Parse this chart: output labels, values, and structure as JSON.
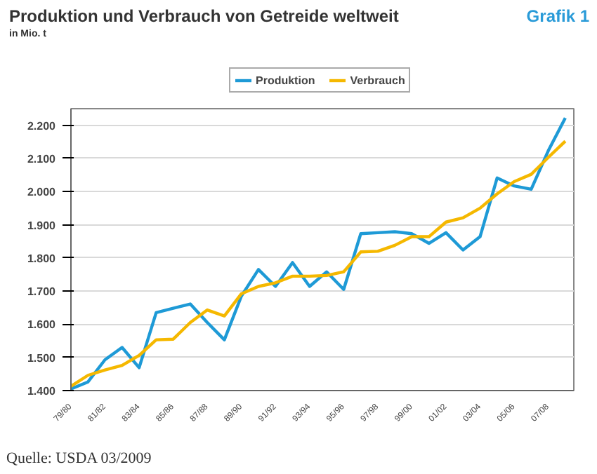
{
  "chart_data": {
    "type": "line",
    "title": "Produktion und Verbrauch von Getreide weltweit",
    "subtitle": "in Mio. t",
    "annotations": [
      "Grafik 1",
      "Quelle: USDA 03/2009"
    ],
    "categories": [
      "79/80",
      null,
      "81/82",
      null,
      "83/84",
      null,
      "85/86",
      null,
      "87/88",
      null,
      "89/90",
      null,
      "91/92",
      null,
      "93/94",
      null,
      "95/96",
      null,
      "97/98",
      null,
      "99/00",
      null,
      "01/02",
      null,
      "03/04",
      null,
      "05/06",
      null,
      "07/08",
      null
    ],
    "series": [
      {
        "name": "Produktion",
        "color": "#1e9ad6",
        "values": [
          1405,
          1426,
          1493,
          1530,
          1469,
          1635,
          1648,
          1661,
          1605,
          1553,
          1685,
          1765,
          1714,
          1786,
          1714,
          1758,
          1705,
          1873,
          1876,
          1879,
          1873,
          1844,
          1876,
          1824,
          1864,
          2041,
          2017,
          2007,
          2123,
          2222
        ]
      },
      {
        "name": "Verbrauch",
        "color": "#f5b800",
        "values": [
          1413,
          1446,
          1462,
          1476,
          1506,
          1553,
          1555,
          1605,
          1643,
          1625,
          1692,
          1714,
          1725,
          1745,
          1745,
          1747,
          1758,
          1818,
          1820,
          1838,
          1864,
          1864,
          1908,
          1921,
          1950,
          1993,
          2030,
          2052,
          2103,
          2152
        ]
      }
    ],
    "ylim": [
      1400,
      2250
    ],
    "yticks": [
      {
        "value": 1400,
        "label": "1.400"
      },
      {
        "value": 1500,
        "label": "1.500"
      },
      {
        "value": 1600,
        "label": "1.600"
      },
      {
        "value": 1700,
        "label": "1.700"
      },
      {
        "value": 1800,
        "label": "1.800"
      },
      {
        "value": 1900,
        "label": "1.900"
      },
      {
        "value": 2000,
        "label": "2.000"
      },
      {
        "value": 2100,
        "label": "2.100"
      },
      {
        "value": 2200,
        "label": "2.200"
      }
    ],
    "grid": "y",
    "legend": "top",
    "marker": "none",
    "line_style": "solid"
  }
}
